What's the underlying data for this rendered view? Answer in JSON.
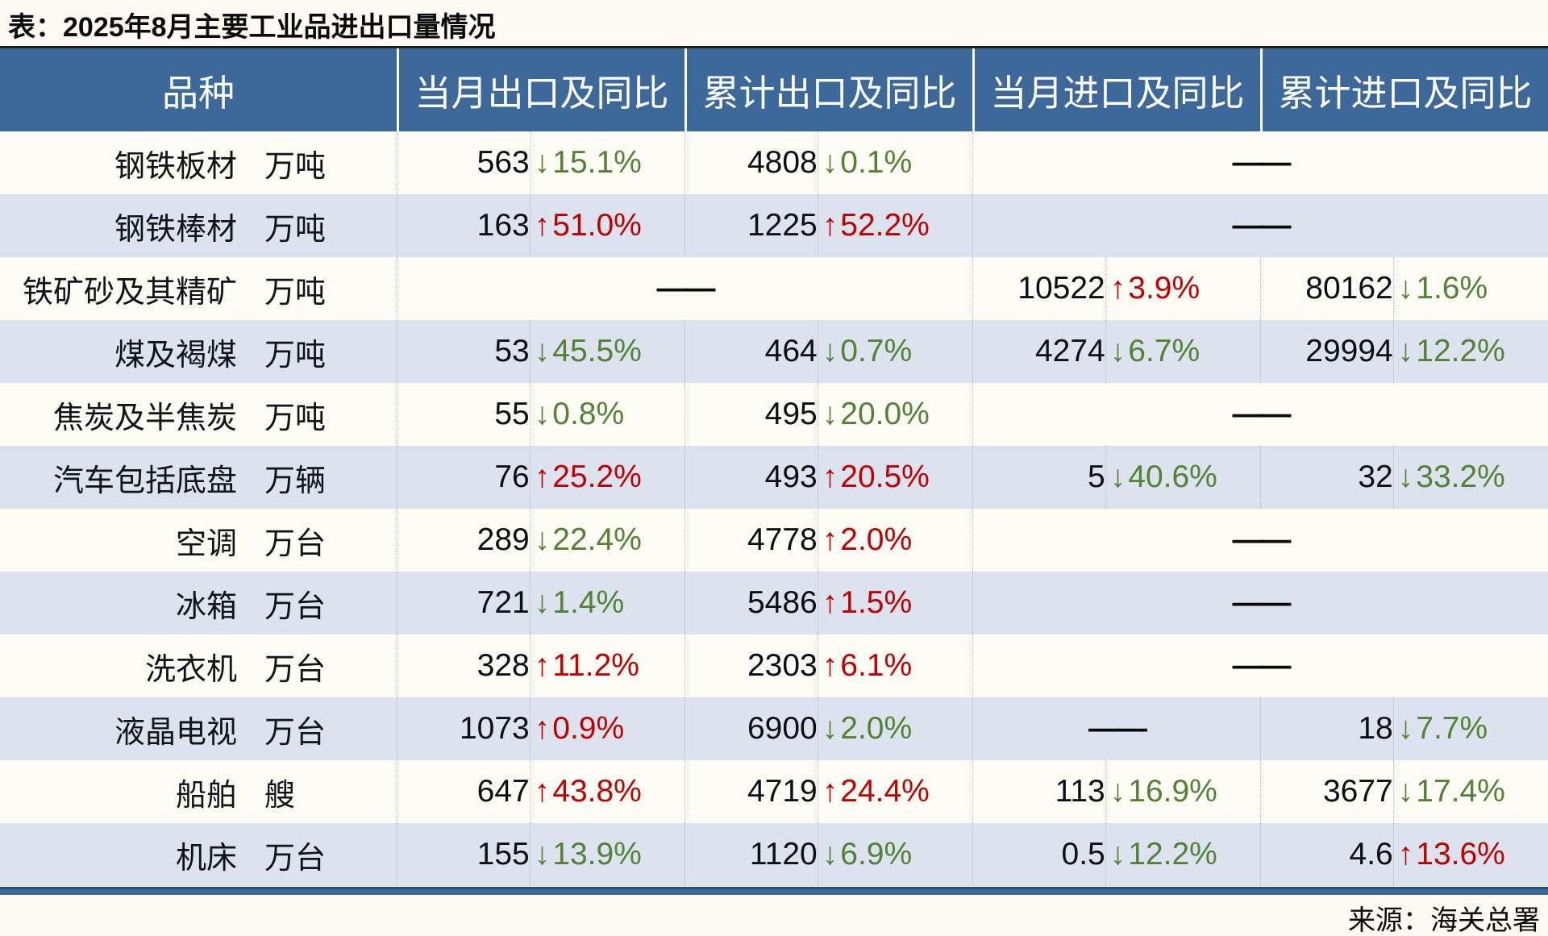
{
  "title": "表：2025年8月主要工业品进出口量情况",
  "source": "来源：海关总署",
  "dash_label": "——",
  "colors": {
    "header_bg": "#3c689a",
    "row_alt": "#dce3ee",
    "row_white": "#fdfcf4",
    "page_bg": "#fcfaf2",
    "up": "#c00000",
    "down": "#538135"
  },
  "table": {
    "headers": [
      "品种",
      "当月出口及同比",
      "累计出口及同比",
      "当月进口及同比",
      "累计进口及同比"
    ],
    "rows": [
      {
        "name": "钢铁板材",
        "unit": "万吨",
        "cells": [
          {
            "value": "563",
            "dir": "down",
            "pct": "15.1%"
          },
          {
            "value": "4808",
            "dir": "down",
            "pct": "0.1%"
          },
          {
            "dash": true,
            "span": 2
          }
        ]
      },
      {
        "name": "钢铁棒材",
        "unit": "万吨",
        "cells": [
          {
            "value": "163",
            "dir": "up",
            "pct": "51.0%"
          },
          {
            "value": "1225",
            "dir": "up",
            "pct": "52.2%"
          },
          {
            "dash": true,
            "span": 2
          }
        ]
      },
      {
        "name": "铁矿砂及其精矿",
        "unit": "万吨",
        "cells": [
          {
            "dash": true,
            "span": 2
          },
          {
            "value": "10522",
            "dir": "up",
            "pct": "3.9%"
          },
          {
            "value": "80162",
            "dir": "down",
            "pct": "1.6%"
          }
        ]
      },
      {
        "name": "煤及褐煤",
        "unit": "万吨",
        "cells": [
          {
            "value": "53",
            "dir": "down",
            "pct": "45.5%"
          },
          {
            "value": "464",
            "dir": "down",
            "pct": "0.7%"
          },
          {
            "value": "4274",
            "dir": "down",
            "pct": "6.7%"
          },
          {
            "value": "29994",
            "dir": "down",
            "pct": "12.2%"
          }
        ]
      },
      {
        "name": "焦炭及半焦炭",
        "unit": "万吨",
        "cells": [
          {
            "value": "55",
            "dir": "down",
            "pct": "0.8%"
          },
          {
            "value": "495",
            "dir": "down",
            "pct": "20.0%"
          },
          {
            "dash": true,
            "span": 2
          }
        ]
      },
      {
        "name": "汽车包括底盘",
        "unit": "万辆",
        "cells": [
          {
            "value": "76",
            "dir": "up",
            "pct": "25.2%"
          },
          {
            "value": "493",
            "dir": "up",
            "pct": "20.5%"
          },
          {
            "value": "5",
            "dir": "down",
            "pct": "40.6%"
          },
          {
            "value": "32",
            "dir": "down",
            "pct": "33.2%"
          }
        ]
      },
      {
        "name": "空调",
        "unit": "万台",
        "cells": [
          {
            "value": "289",
            "dir": "down",
            "pct": "22.4%"
          },
          {
            "value": "4778",
            "dir": "up",
            "pct": "2.0%"
          },
          {
            "dash": true,
            "span": 2
          }
        ]
      },
      {
        "name": "冰箱",
        "unit": "万台",
        "cells": [
          {
            "value": "721",
            "dir": "down",
            "pct": "1.4%"
          },
          {
            "value": "5486",
            "dir": "up",
            "pct": "1.5%"
          },
          {
            "dash": true,
            "span": 2
          }
        ]
      },
      {
        "name": "洗衣机",
        "unit": "万台",
        "cells": [
          {
            "value": "328",
            "dir": "up",
            "pct": "11.2%"
          },
          {
            "value": "2303",
            "dir": "up",
            "pct": "6.1%"
          },
          {
            "dash": true,
            "span": 2
          }
        ]
      },
      {
        "name": "液晶电视",
        "unit": "万台",
        "cells": [
          {
            "value": "1073",
            "dir": "up",
            "pct": "0.9%"
          },
          {
            "value": "6900",
            "dir": "down",
            "pct": "2.0%"
          },
          {
            "dash": true,
            "span": 1
          },
          {
            "value": "18",
            "dir": "down",
            "pct": "7.7%"
          }
        ]
      },
      {
        "name": "船舶",
        "unit": "艘",
        "cells": [
          {
            "value": "647",
            "dir": "up",
            "pct": "43.8%"
          },
          {
            "value": "4719",
            "dir": "up",
            "pct": "24.4%"
          },
          {
            "value": "113",
            "dir": "down",
            "pct": "16.9%"
          },
          {
            "value": "3677",
            "dir": "down",
            "pct": "17.4%"
          }
        ]
      },
      {
        "name": "机床",
        "unit": "万台",
        "cells": [
          {
            "value": "155",
            "dir": "down",
            "pct": "13.9%"
          },
          {
            "value": "1120",
            "dir": "down",
            "pct": "6.9%"
          },
          {
            "value": "0.5",
            "dir": "down",
            "pct": "12.2%"
          },
          {
            "value": "4.6",
            "dir": "up",
            "pct": "13.6%"
          }
        ]
      }
    ]
  },
  "icons": {
    "up_arrow": "↑",
    "down_arrow": "↓"
  }
}
